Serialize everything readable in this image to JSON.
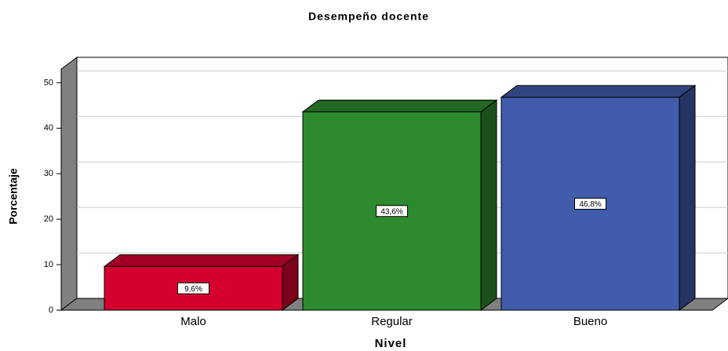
{
  "chart_data": {
    "type": "bar",
    "title": "Desempeño docente",
    "x_label": "Nivel",
    "y_label": "Porcentaje",
    "categories": [
      "Malo",
      "Regular",
      "Bueno"
    ],
    "values": [
      9.6,
      43.6,
      46.8
    ],
    "value_labels": [
      "9,6%",
      "43,6%",
      "46,8%"
    ],
    "colors": [
      "#d5002e",
      "#2e8a2e",
      "#405cab"
    ],
    "ylim": [
      0,
      53
    ],
    "yticks": [
      0,
      10,
      20,
      30,
      40,
      50
    ],
    "grid": true
  }
}
